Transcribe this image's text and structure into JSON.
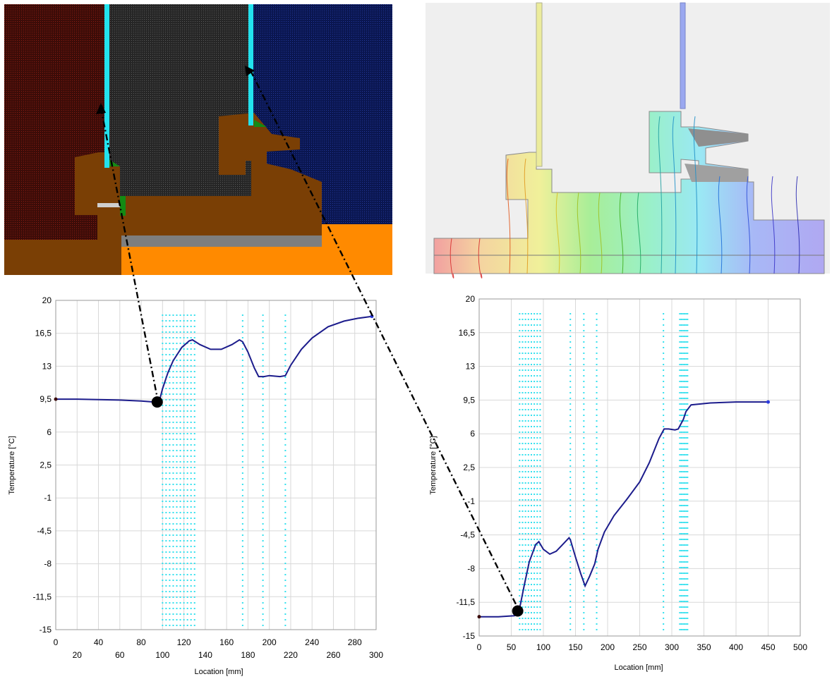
{
  "colors": {
    "warm_hatch": "#3c0c08",
    "cavity_hatch": "#2f2f2f",
    "cold_hatch": "#0c1a55",
    "wood": "#7a3f05",
    "glass": "#22e2ee",
    "seal": "#1a7a1a",
    "sill_grey": "#7a7a7a",
    "orange": "#ff8a00",
    "curve": "#1c1c8c",
    "laminae": "#33e0ee",
    "grid": "#d8d8d8"
  },
  "chart_data": [
    {
      "type": "line",
      "name": "left-section",
      "xlabel": "Location [mm]",
      "ylabel": "Temperature [°C]",
      "xlim": [
        0,
        300
      ],
      "ylim": [
        -15,
        20
      ],
      "x_ticks_upper": [
        "0",
        "40",
        "80",
        "120",
        "160",
        "200",
        "240",
        "280"
      ],
      "x_ticks_lower": [
        "20",
        "60",
        "100",
        "140",
        "180",
        "220",
        "260",
        "300"
      ],
      "y_ticks": [
        "20",
        "16,5",
        "13",
        "9,5",
        "6",
        "2,5",
        "-1",
        "-4,5",
        "-8",
        "-11,5",
        "-15"
      ],
      "grid": true,
      "series": [
        {
          "x": [
            0,
            20,
            40,
            60,
            80,
            92,
            95,
            97,
            100,
            105,
            110,
            118,
            125,
            128,
            135,
            145,
            155,
            165,
            172,
            175,
            180,
            186,
            190,
            195,
            200,
            210,
            215,
            220,
            230,
            240,
            255,
            270,
            283,
            296
          ],
          "y": [
            9.5,
            9.5,
            9.45,
            9.4,
            9.3,
            9.2,
            9.2,
            9.3,
            10.6,
            12.3,
            13.6,
            15.0,
            15.7,
            15.8,
            15.3,
            14.8,
            14.8,
            15.3,
            15.8,
            15.6,
            14.5,
            12.8,
            11.9,
            11.9,
            12.0,
            11.9,
            12.0,
            13.1,
            14.8,
            16.0,
            17.2,
            17.8,
            18.1,
            18.3
          ]
        }
      ],
      "markers": [
        {
          "x": 95,
          "y": 9.2,
          "kind": "big-dot"
        },
        {
          "x": 0,
          "y": 9.5,
          "kind": "end-dot"
        },
        {
          "x": 296,
          "y": 18.3,
          "kind": "end-dot"
        }
      ],
      "laminae": [
        {
          "x_from": 100,
          "x_to": 130,
          "cols": 10
        },
        {
          "x_from": 175,
          "x_to": 175,
          "cols": 1
        },
        {
          "x_from": 194,
          "x_to": 194,
          "cols": 1
        },
        {
          "x_from": 215,
          "x_to": 215,
          "cols": 1
        }
      ]
    },
    {
      "type": "line",
      "name": "right-section",
      "xlabel": "Location [mm]",
      "ylabel": "Temperature [°C]",
      "xlim": [
        0,
        500
      ],
      "ylim": [
        -15,
        20
      ],
      "x_ticks": [
        "0",
        "50",
        "100",
        "150",
        "200",
        "250",
        "300",
        "350",
        "400",
        "450",
        "500"
      ],
      "y_ticks": [
        "20",
        "16,5",
        "13",
        "9,5",
        "6",
        "2,5",
        "-1",
        "-4,5",
        "-8",
        "-11,5",
        "-15"
      ],
      "grid": true,
      "series": [
        {
          "x": [
            0,
            30,
            55,
            62,
            65,
            70,
            78,
            88,
            93,
            100,
            110,
            120,
            130,
            140,
            142,
            150,
            158,
            165,
            172,
            180,
            185,
            195,
            210,
            230,
            250,
            265,
            280,
            288,
            295,
            305,
            310,
            318,
            322,
            330,
            360,
            400,
            450
          ],
          "y": [
            -13.0,
            -13.0,
            -12.9,
            -12.4,
            -11.5,
            -9.8,
            -7.3,
            -5.5,
            -5.2,
            -6.0,
            -6.5,
            -6.2,
            -5.5,
            -4.8,
            -5.0,
            -6.8,
            -8.5,
            -9.8,
            -8.8,
            -7.5,
            -6.0,
            -4.2,
            -2.5,
            -0.8,
            1.0,
            3.0,
            5.5,
            6.5,
            6.5,
            6.4,
            6.5,
            7.5,
            8.3,
            9.0,
            9.2,
            9.3,
            9.3
          ]
        }
      ],
      "markers": [
        {
          "x": 60,
          "y": -12.4,
          "kind": "big-dot"
        },
        {
          "x": 0,
          "y": -13.0,
          "kind": "end-dot"
        },
        {
          "x": 450,
          "y": 9.3,
          "kind": "end-dot"
        }
      ],
      "laminae": [
        {
          "x_from": 63,
          "x_to": 95,
          "cols": 8
        },
        {
          "x_from": 142,
          "x_to": 142,
          "cols": 1
        },
        {
          "x_from": 163,
          "x_to": 163,
          "cols": 1
        },
        {
          "x_from": 183,
          "x_to": 183,
          "cols": 1
        },
        {
          "x_from": 287,
          "x_to": 287,
          "cols": 1
        },
        {
          "x_from": 312,
          "x_to": 325,
          "cols": 10
        }
      ]
    }
  ]
}
